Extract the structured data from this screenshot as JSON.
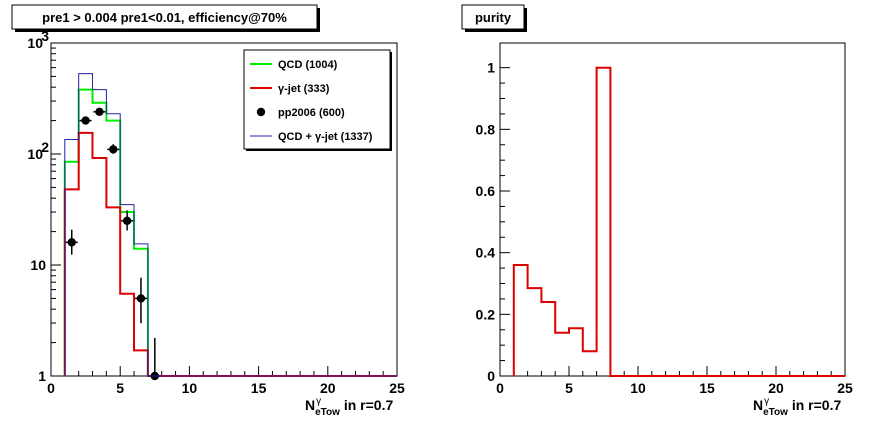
{
  "chart_data": [
    {
      "type": "line",
      "title": "pre1 > 0.004  pre1<0.01, efficiency@70%",
      "xlabel": {
        "main": "N",
        "sup": "γ",
        "sub": "eTow",
        "suffix": " in r=0.7"
      },
      "ylabel": "",
      "xlim": [
        0,
        25
      ],
      "ylim": [
        1,
        1000
      ],
      "log_y": true,
      "x_ticks": [
        0,
        5,
        10,
        15,
        20,
        25
      ],
      "y_ticks": [
        {
          "value": 1,
          "label": "1",
          "exp": ""
        },
        {
          "value": 10,
          "label": "10",
          "exp": ""
        },
        {
          "value": 100,
          "label": "10",
          "exp": "2"
        },
        {
          "value": 1000,
          "label": "10",
          "exp": "3"
        }
      ],
      "bin_edges": [
        1,
        2,
        3,
        4,
        5,
        6,
        7,
        8,
        9,
        10,
        11,
        12,
        13,
        14,
        15,
        16,
        17,
        18,
        19,
        20,
        21,
        22,
        23,
        24,
        25
      ],
      "legend_position": "top-right",
      "series": [
        {
          "name": "QCD (1004)",
          "kind": "hist",
          "color": "#00ee00",
          "values": [
            85,
            380,
            290,
            200,
            30,
            14,
            1,
            1,
            1,
            1,
            1,
            1,
            1,
            1,
            1,
            1,
            1,
            1,
            1,
            1,
            1,
            1,
            1,
            1
          ]
        },
        {
          "name": "γ-jet (333)",
          "kind": "hist",
          "color": "#dd0000",
          "values": [
            48,
            155,
            92,
            33,
            5.5,
            1.7,
            1,
            1,
            1,
            1,
            1,
            1,
            1,
            1,
            1,
            1,
            1,
            1,
            1,
            1,
            1,
            1,
            1,
            1
          ]
        },
        {
          "name": "pp2006 (600)",
          "kind": "points",
          "color": "#000000",
          "x": [
            1.5,
            2.5,
            3.5,
            4.5,
            5.5,
            6.5,
            7.5
          ],
          "y": [
            16,
            200,
            240,
            110,
            25,
            5,
            1
          ]
        },
        {
          "name": "QCD + γ-jet (1337)",
          "kind": "hist",
          "color": "#2222aa",
          "values": [
            135,
            530,
            380,
            230,
            35,
            15.5,
            1,
            1,
            1,
            1,
            1,
            1,
            1,
            1,
            1,
            1,
            1,
            1,
            1,
            1,
            1,
            1,
            1,
            1
          ]
        }
      ]
    },
    {
      "type": "line",
      "title": "purity",
      "xlabel": {
        "main": "N",
        "sup": "γ",
        "sub": "eTow",
        "suffix": " in r=0.7"
      },
      "ylabel": "",
      "xlim": [
        0,
        25
      ],
      "ylim": [
        0,
        1.08
      ],
      "log_y": false,
      "x_ticks": [
        0,
        5,
        10,
        15,
        20,
        25
      ],
      "y_ticks": [
        {
          "value": 0,
          "label": "0",
          "exp": ""
        },
        {
          "value": 0.2,
          "label": "0.2",
          "exp": ""
        },
        {
          "value": 0.4,
          "label": "0.4",
          "exp": ""
        },
        {
          "value": 0.6,
          "label": "0.6",
          "exp": ""
        },
        {
          "value": 0.8,
          "label": "0.8",
          "exp": ""
        },
        {
          "value": 1.0,
          "label": "1",
          "exp": ""
        }
      ],
      "bin_edges": [
        1,
        2,
        3,
        4,
        5,
        6,
        7,
        8,
        9,
        10,
        11,
        12,
        13,
        14,
        15,
        16,
        17,
        18,
        19,
        20,
        21,
        22,
        23,
        24,
        25
      ],
      "series": [
        {
          "name": "",
          "kind": "hist",
          "color": "#dd0000",
          "values": [
            0.36,
            0.285,
            0.24,
            0.14,
            0.155,
            0.08,
            1.0,
            0,
            0,
            0,
            0,
            0,
            0,
            0,
            0,
            0,
            0,
            0,
            0,
            0,
            0,
            0,
            0,
            0
          ]
        }
      ]
    }
  ]
}
